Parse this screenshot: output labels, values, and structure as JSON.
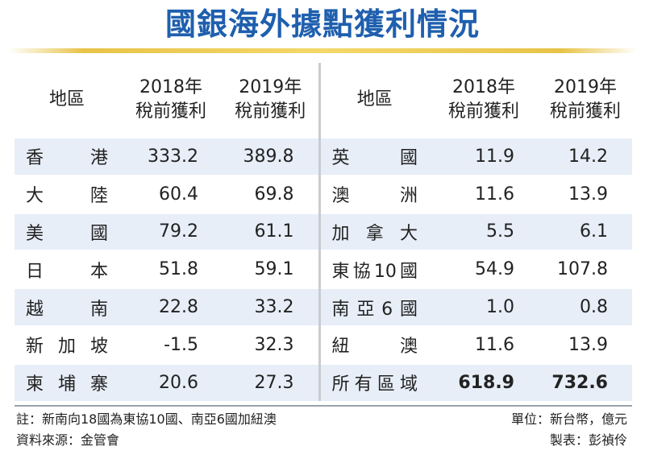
{
  "title": "國銀海外據點獲利情況",
  "headers": {
    "region": "地區",
    "y2018_line1": "2018年",
    "y2018_line2": "稅前獲利",
    "y2019_line1": "2019年",
    "y2019_line2": "稅前獲利"
  },
  "rows": [
    {
      "left_region": "香港",
      "left_2018": "333.2",
      "left_2019": "389.8",
      "right_region": "英國",
      "right_2018": "11.9",
      "right_2019": "14.2"
    },
    {
      "left_region": "大陸",
      "left_2018": "60.4",
      "left_2019": "69.8",
      "right_region": "澳洲",
      "right_2018": "11.6",
      "right_2019": "13.9"
    },
    {
      "left_region": "美國",
      "left_2018": "79.2",
      "left_2019": "61.1",
      "right_region": "加拿大",
      "right_2018": "5.5",
      "right_2019": "6.1"
    },
    {
      "left_region": "日本",
      "left_2018": "51.8",
      "left_2019": "59.1",
      "right_region": "東協10國",
      "right_2018": "54.9",
      "right_2019": "107.8"
    },
    {
      "left_region": "越南",
      "left_2018": "22.8",
      "left_2019": "33.2",
      "right_region": "南亞6國",
      "right_2018": "1.0",
      "right_2019": "0.8"
    },
    {
      "left_region": "新加坡",
      "left_2018": "-1.5",
      "left_2019": "32.3",
      "right_region": "紐澳",
      "right_2018": "11.6",
      "right_2019": "13.9"
    },
    {
      "left_region": "柬埔寨",
      "left_2018": "20.6",
      "left_2019": "27.3",
      "right_region": "所有區域",
      "right_2018": "618.9",
      "right_2019": "732.6"
    }
  ],
  "footer": {
    "note": "註：新南向18國為東協10國、南亞6國加紐澳",
    "source": "資料來源：金管會",
    "unit": "單位：新台幣，億元",
    "author": "製表：彭禎伶"
  },
  "colors": {
    "title": "#1f5fae",
    "row_stripe": "#e7eef8",
    "rule_gold": "#e8c348"
  }
}
